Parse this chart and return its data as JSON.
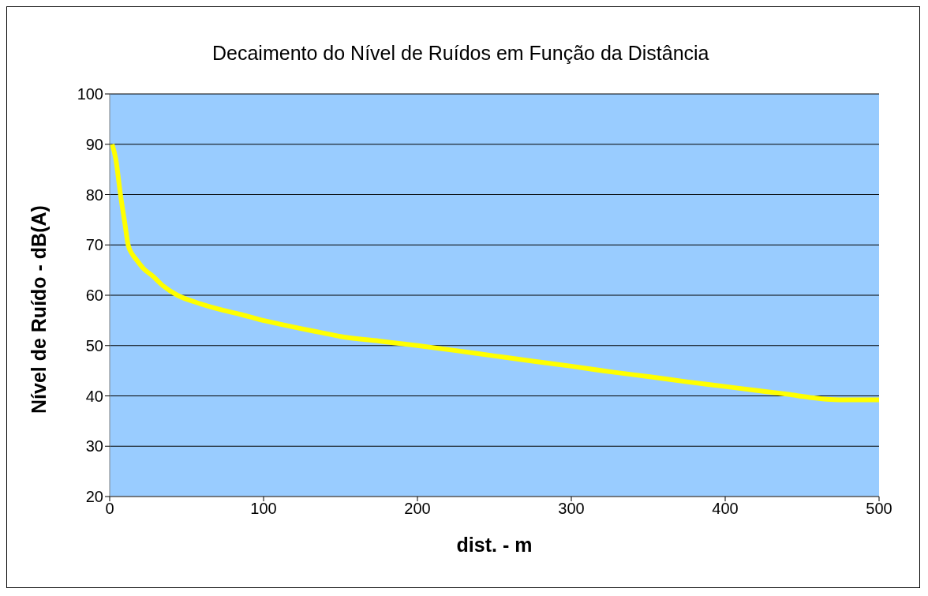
{
  "chart_data": {
    "type": "line",
    "title": "Decaimento do Nível de Ruídos em Função da Distância",
    "xlabel": "dist. - m",
    "ylabel": "Nível de Ruído - dB(A)",
    "series": [
      {
        "color": "#ffff00",
        "x": [
          1.6,
          4,
          7,
          10,
          12,
          15,
          17.5,
          22,
          28,
          35,
          44,
          55,
          70,
          85,
          97,
          110,
          124,
          137,
          150,
          175,
          200,
          225,
          251,
          275,
          300,
          325,
          351,
          375,
          399,
          420,
          441,
          455,
          468,
          480,
          490,
          500
        ],
        "values": [
          90,
          87,
          80,
          74,
          70,
          68,
          67,
          65.3,
          63.8,
          61.8,
          60,
          58.7,
          57.3,
          56.2,
          55.2,
          54.3,
          53.4,
          52.6,
          51.8,
          50.9,
          50,
          49,
          47.9,
          46.9,
          45.9,
          44.8,
          43.8,
          42.8,
          41.9,
          41.1,
          40.3,
          39.7,
          39.3,
          39.2,
          39.2,
          39.2
        ]
      }
    ],
    "xlim": [
      0,
      500
    ],
    "xticks": [
      0,
      100,
      200,
      300,
      400,
      500
    ],
    "ylim": [
      20,
      100
    ],
    "yticks": [
      20,
      30,
      40,
      50,
      60,
      70,
      80,
      90,
      100
    ],
    "grid": "y",
    "legend": false,
    "marker": "none",
    "line_style": "solid"
  }
}
